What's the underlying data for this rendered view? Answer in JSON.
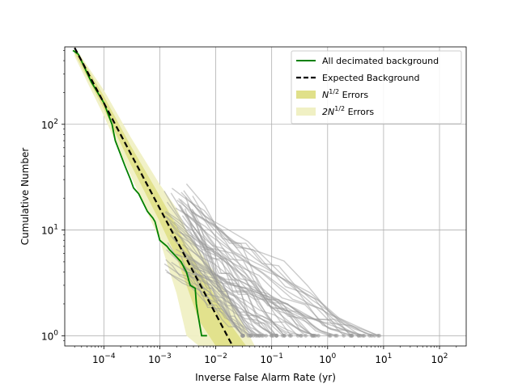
{
  "chart_data": {
    "type": "line",
    "title": "",
    "xlabel": "Inverse False Alarm Rate (yr)",
    "ylabel": "Cumulative Number",
    "xscale": "log",
    "yscale": "log",
    "xlim": [
      2e-05,
      300
    ],
    "ylim": [
      0.8,
      540
    ],
    "grid": true,
    "legend_position": "top-right",
    "x_tick_labels": [
      {
        "value": 0.0001,
        "base": "10",
        "exp": "−4"
      },
      {
        "value": 0.001,
        "base": "10",
        "exp": "−3"
      },
      {
        "value": 0.01,
        "base": "10",
        "exp": "−2"
      },
      {
        "value": 0.1,
        "base": "10",
        "exp": "−1"
      },
      {
        "value": 1,
        "base": "10",
        "exp": "0"
      },
      {
        "value": 10,
        "base": "10",
        "exp": "1"
      },
      {
        "value": 100,
        "base": "10",
        "exp": "2"
      }
    ],
    "y_tick_labels": [
      {
        "value": 1,
        "base": "10",
        "exp": "0"
      },
      {
        "value": 10,
        "base": "10",
        "exp": "1"
      },
      {
        "value": 100,
        "base": "10",
        "exp": "2"
      }
    ],
    "legend": [
      {
        "base": "All decimated background",
        "sup": "",
        "after": "",
        "kind": "line",
        "color": "#008000"
      },
      {
        "base": "Expected Background",
        "sup": "",
        "after": "",
        "kind": "dashed",
        "color": "#000000"
      },
      {
        "base": "N",
        "sup": "1/2",
        "after": " Errors",
        "kind": "patch",
        "color": "#e0e08a"
      },
      {
        "base": "2N",
        "sup": "1/2",
        "after": " Errors",
        "kind": "patch",
        "color": "#f0f0c4"
      }
    ],
    "colors": {
      "observed": "#008000",
      "expected": "#000000",
      "band_1sigma": "#e0e08a",
      "band_2sigma": "#f0f0c4",
      "samples": "#999999"
    },
    "expected_background": {
      "x": [
        3e-05,
        0.02
      ],
      "y": [
        530,
        0.8
      ]
    },
    "observed": {
      "x": [
        2.8e-05,
        3.5e-05,
        6e-05,
        0.0001,
        0.00014,
        0.00016,
        0.00024,
        0.0003,
        0.00034,
        0.00042,
        0.0006,
        0.00075,
        0.00082,
        0.001,
        0.00135,
        0.0015,
        0.0024,
        0.003,
        0.0035,
        0.0043,
        0.0045,
        0.0048,
        0.0056,
        0.007
      ],
      "y": [
        500,
        460,
        250,
        160,
        100,
        70,
        40,
        30,
        25,
        22,
        15,
        13,
        12,
        8,
        7,
        6.5,
        5,
        4,
        3,
        2.8,
        2,
        1.6,
        1,
        1
      ]
    },
    "band_1sigma": {
      "x": [
        3e-05,
        0.0001,
        0.0003,
        0.001,
        0.002,
        0.003,
        0.005,
        0.01,
        0.02,
        0.035
      ],
      "lower": [
        470,
        140,
        42,
        12,
        5.5,
        3,
        1.4,
        0.8,
        0.8,
        0.8
      ],
      "upper": [
        560,
        185,
        63,
        21,
        11,
        7,
        4.3,
        2.3,
        1.2,
        0.8
      ]
    },
    "band_2sigma": {
      "x": [
        3e-05,
        0.0001,
        0.0003,
        0.001,
        0.002,
        0.003,
        0.005,
        0.01,
        0.02,
        0.05
      ],
      "lower": [
        440,
        120,
        33,
        8,
        2.5,
        1,
        0.8,
        0.8,
        0.8,
        0.8
      ],
      "upper": [
        590,
        210,
        76,
        27,
        16,
        10,
        6.5,
        3.8,
        2,
        0.8
      ]
    },
    "background_samples": {
      "count": 60,
      "x_start_range": [
        0.0012,
        0.004
      ],
      "y_start_range": [
        4,
        30
      ],
      "x_end_range": [
        0.03,
        9
      ],
      "y_end": 1,
      "x_start_examples": [
        0.0013,
        0.0015,
        0.002,
        0.0025,
        0.003
      ],
      "y_start_examples": [
        30,
        25,
        18,
        12,
        8
      ]
    }
  }
}
